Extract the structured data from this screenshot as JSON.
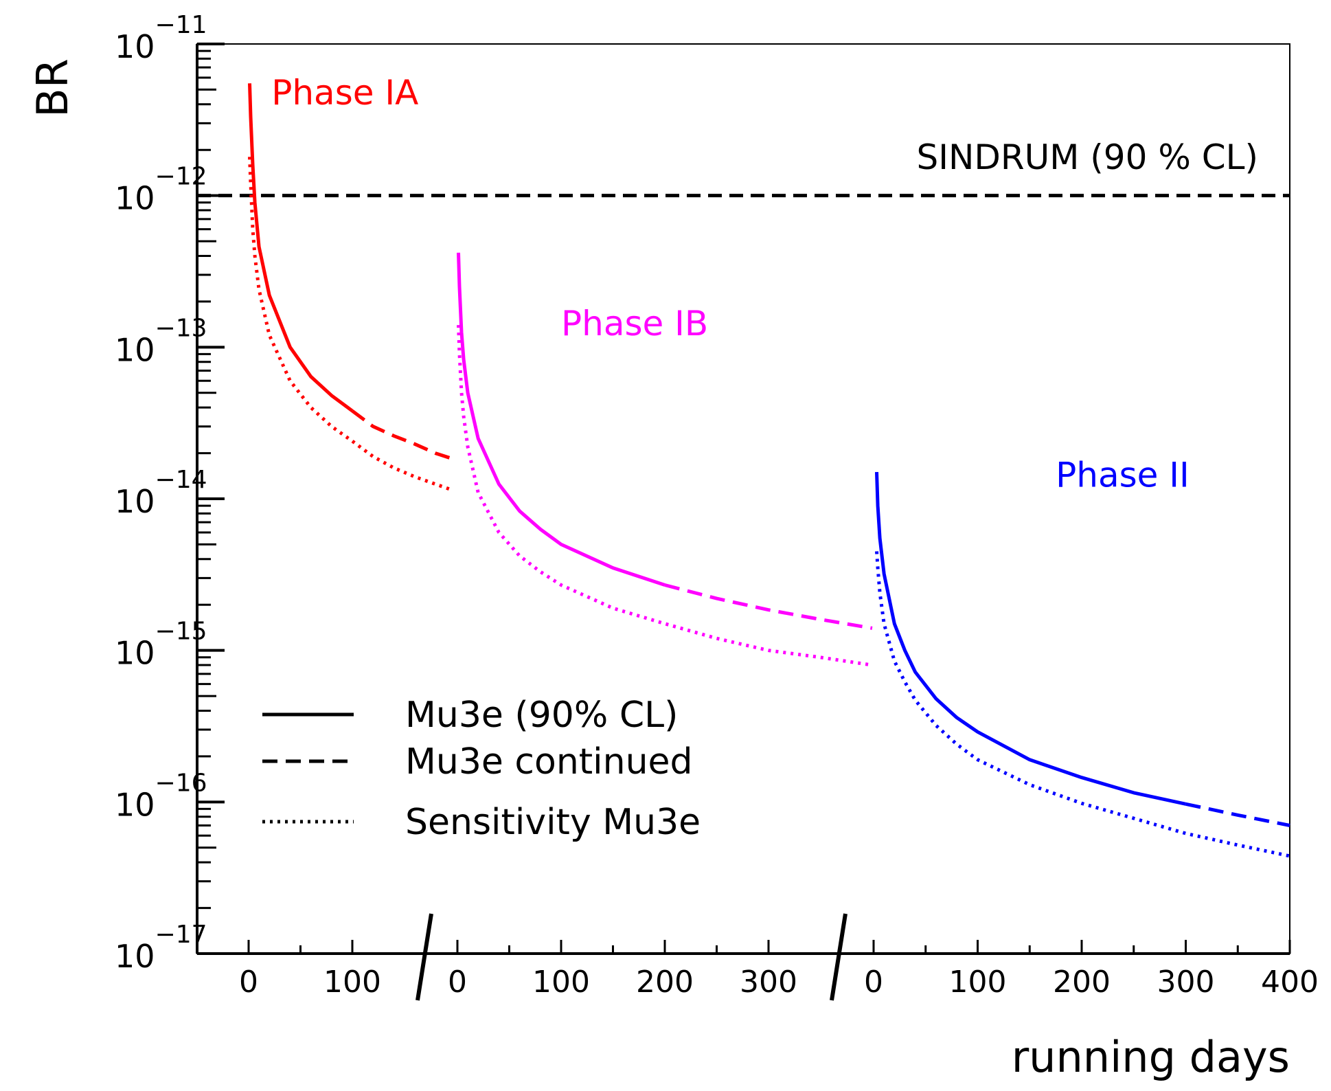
{
  "chart_data": {
    "type": "line",
    "title": "",
    "xlabel": "running days",
    "ylabel": "BR",
    "yscale": "log",
    "ylim": [
      1e-17,
      1e-11
    ],
    "grid": false,
    "legend_position": "bottom-left",
    "y_ticks": [
      {
        "base": "10",
        "exp": "−11",
        "value": 1e-11
      },
      {
        "base": "10",
        "exp": "−12",
        "value": 1e-12
      },
      {
        "base": "10",
        "exp": "−13",
        "value": 1e-13
      },
      {
        "base": "10",
        "exp": "−14",
        "value": 1e-14
      },
      {
        "base": "10",
        "exp": "−15",
        "value": 1e-15
      },
      {
        "base": "10",
        "exp": "−16",
        "value": 1e-16
      },
      {
        "base": "10",
        "exp": "−17",
        "value": 1e-17
      }
    ],
    "segments": [
      {
        "name": "Phase IA",
        "x_ticks": [
          0,
          100
        ],
        "x_range": [
          0,
          195
        ]
      },
      {
        "name": "Phase IB",
        "x_ticks": [
          0,
          100,
          200,
          300
        ],
        "x_range": [
          0,
          400
        ]
      },
      {
        "name": "Phase II",
        "x_ticks": [
          0,
          100,
          200,
          300,
          400
        ],
        "x_range": [
          0,
          400
        ]
      }
    ],
    "reference_line": {
      "label": "SINDRUM (90 % CL)",
      "value": 1e-12,
      "style": "dashed"
    },
    "phase_labels": [
      {
        "text": "Phase IA",
        "segment": 0,
        "x": 22,
        "y": 4e-12,
        "color": "#ff0000"
      },
      {
        "text": "Phase IB",
        "segment": 1,
        "x": 100,
        "y": 1.2e-13,
        "color": "#ff00ff"
      },
      {
        "text": "Phase II",
        "segment": 2,
        "x": 175,
        "y": 1.2e-14,
        "color": "#0000ff"
      }
    ],
    "series": [
      {
        "name": "Phase IA Mu3e (90% CL)",
        "legend_key": 0,
        "segment": 0,
        "style": "solid",
        "color": "#ff0000",
        "x": [
          1,
          2,
          4,
          6,
          10,
          20,
          40,
          60,
          80,
          100
        ],
        "y": [
          5.5e-12,
          3.3e-12,
          1.6e-12,
          9e-13,
          4.6e-13,
          2.2e-13,
          1e-13,
          6.4e-14,
          4.8e-14,
          3.8e-14
        ]
      },
      {
        "name": "Phase IA Mu3e continued",
        "legend_key": 1,
        "segment": 0,
        "style": "dashed",
        "color": "#ff0000",
        "x": [
          100,
          120,
          140,
          160,
          180,
          195
        ],
        "y": [
          3.8e-14,
          3e-14,
          2.6e-14,
          2.3e-14,
          2e-14,
          1.85e-14
        ]
      },
      {
        "name": "Phase IA Sensitivity Mu3e",
        "legend_key": 2,
        "segment": 0,
        "style": "dotted",
        "color": "#ff0000",
        "x": [
          1,
          2,
          4,
          6,
          10,
          20,
          40,
          60,
          80,
          100,
          120,
          140,
          160,
          180,
          195
        ],
        "y": [
          1.8e-12,
          1.2e-12,
          6e-13,
          4e-13,
          2.4e-13,
          1.2e-13,
          6e-14,
          4e-14,
          3e-14,
          2.4e-14,
          1.9e-14,
          1.6e-14,
          1.4e-14,
          1.25e-14,
          1.15e-14
        ]
      },
      {
        "name": "Phase IB Mu3e (90% CL)",
        "legend_key": 0,
        "segment": 1,
        "style": "solid",
        "color": "#ff00ff",
        "x": [
          1,
          2,
          4,
          6,
          10,
          20,
          40,
          60,
          80,
          100,
          150,
          200
        ],
        "y": [
          4.2e-13,
          2.5e-13,
          1.25e-13,
          8.3e-14,
          5e-14,
          2.5e-14,
          1.25e-14,
          8.3e-15,
          6.3e-15,
          5e-15,
          3.5e-15,
          2.7e-15
        ]
      },
      {
        "name": "Phase IB Mu3e continued",
        "legend_key": 1,
        "segment": 1,
        "style": "dashed",
        "color": "#ff00ff",
        "x": [
          200,
          250,
          300,
          350,
          400
        ],
        "y": [
          2.7e-15,
          2.2e-15,
          1.85e-15,
          1.6e-15,
          1.4e-15
        ]
      },
      {
        "name": "Phase IB Sensitivity Mu3e",
        "legend_key": 2,
        "segment": 1,
        "style": "dotted",
        "color": "#ff00ff",
        "x": [
          1,
          2,
          4,
          6,
          10,
          20,
          40,
          60,
          80,
          100,
          150,
          200,
          250,
          300,
          350,
          400
        ],
        "y": [
          1.4e-13,
          9e-14,
          5e-14,
          3.5e-14,
          2.2e-14,
          1.1e-14,
          6e-15,
          4.2e-15,
          3.3e-15,
          2.7e-15,
          1.9e-15,
          1.5e-15,
          1.2e-15,
          1e-15,
          9e-16,
          8e-16
        ]
      },
      {
        "name": "Phase II Mu3e (90% CL)",
        "legend_key": 0,
        "segment": 2,
        "style": "solid",
        "color": "#0000ff",
        "x": [
          3,
          4,
          6,
          10,
          20,
          30,
          40,
          60,
          80,
          100,
          150,
          200,
          250,
          300
        ],
        "y": [
          1.5e-14,
          9e-15,
          5.5e-15,
          3.2e-15,
          1.5e-15,
          1e-15,
          7.2e-16,
          4.8e-16,
          3.6e-16,
          2.9e-16,
          1.9e-16,
          1.45e-16,
          1.15e-16,
          9.7e-17
        ]
      },
      {
        "name": "Phase II Mu3e continued",
        "legend_key": 1,
        "segment": 2,
        "style": "dashed",
        "color": "#0000ff",
        "x": [
          300,
          350,
          400
        ],
        "y": [
          9.7e-17,
          8.2e-17,
          7e-17
        ]
      },
      {
        "name": "Phase II Sensitivity Mu3e",
        "legend_key": 2,
        "segment": 2,
        "style": "dotted",
        "color": "#0000ff",
        "x": [
          3,
          4,
          6,
          10,
          20,
          30,
          40,
          60,
          80,
          100,
          150,
          200,
          250,
          300,
          350,
          400
        ],
        "y": [
          4.5e-15,
          3.5e-15,
          2.4e-15,
          1.5e-15,
          8.5e-16,
          6.2e-16,
          4.7e-16,
          3.2e-16,
          2.4e-16,
          1.9e-16,
          1.3e-16,
          9.8e-17,
          7.8e-17,
          6.2e-17,
          5.2e-17,
          4.4e-17
        ]
      }
    ],
    "legend": [
      {
        "label": "Mu3e (90% CL)",
        "style": "solid"
      },
      {
        "label": "Mu3e continued",
        "style": "dashed"
      },
      {
        "label": "Sensitivity Mu3e",
        "style": "dotted"
      }
    ]
  }
}
